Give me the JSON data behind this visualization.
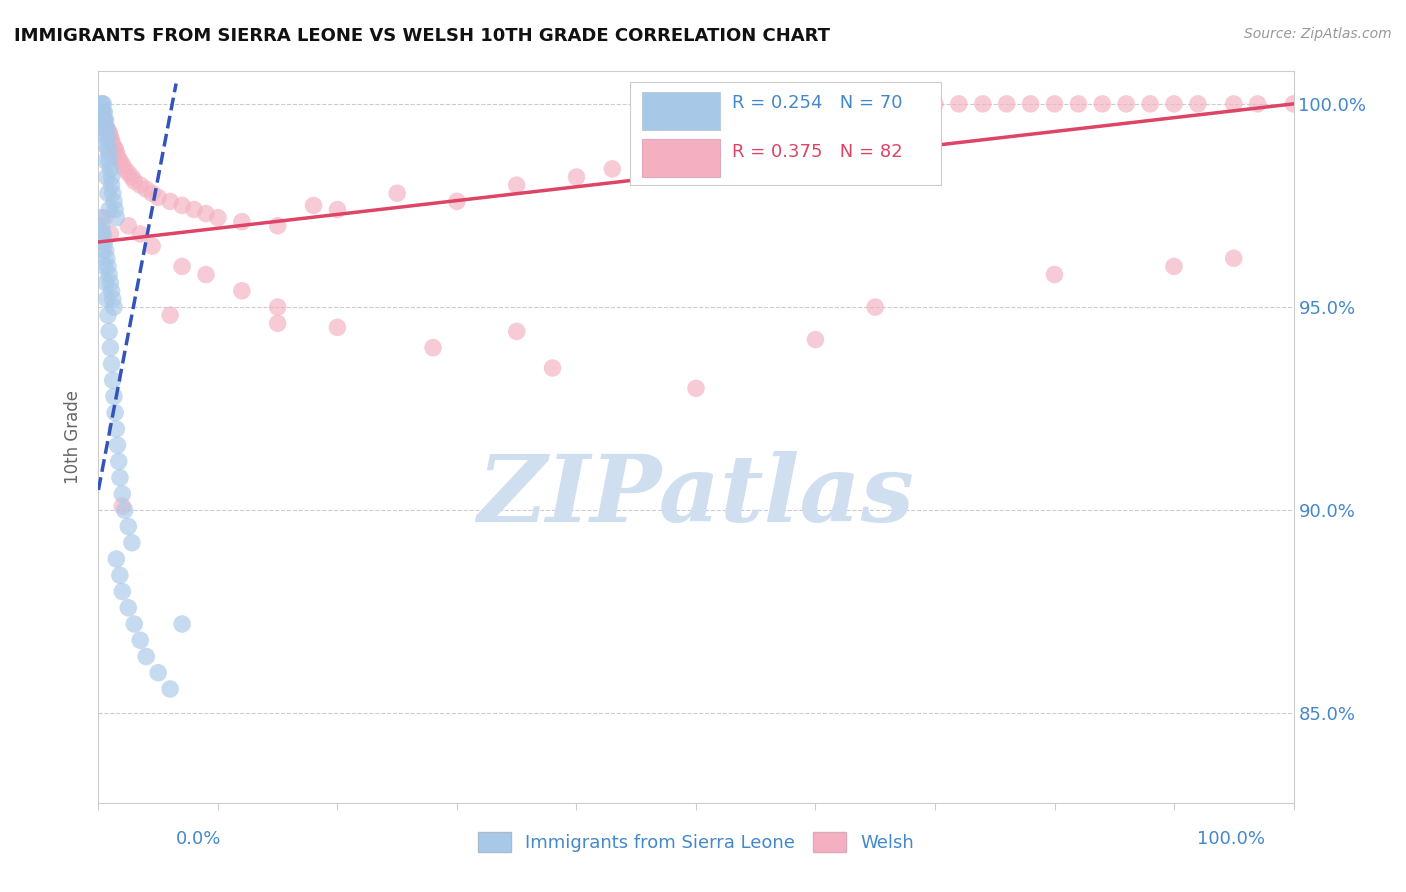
{
  "title": "IMMIGRANTS FROM SIERRA LEONE VS WELSH 10TH GRADE CORRELATION CHART",
  "source_text": "Source: ZipAtlas.com",
  "ylabel": "10th Grade",
  "xlim": [
    0.0,
    1.0
  ],
  "ylim": [
    0.828,
    1.008
  ],
  "y_tick_positions": [
    0.85,
    0.9,
    0.95,
    1.0
  ],
  "y_tick_labels": [
    "85.0%",
    "90.0%",
    "95.0%",
    "100.0%"
  ],
  "x_tick_positions": [
    0.0,
    0.1,
    0.2,
    0.3,
    0.4,
    0.5,
    0.6,
    0.7,
    0.8,
    0.9,
    1.0
  ],
  "blue_R": 0.254,
  "blue_N": 70,
  "pink_R": 0.375,
  "pink_N": 82,
  "blue_color": "#a8c8e8",
  "pink_color": "#f4b0c0",
  "blue_line_color": "#3355bb",
  "pink_line_color": "#dd4466",
  "grid_color": "#cccccc",
  "title_color": "#111111",
  "axis_label_color": "#4488cc",
  "watermark_text": "ZIPatlas",
  "watermark_color": "#d0dff0",
  "source_color": "#999999",
  "background_color": "#ffffff",
  "blue_line_x": [
    0.0,
    0.065
  ],
  "blue_line_y": [
    0.905,
    1.005
  ],
  "pink_line_x": [
    0.0,
    1.0
  ],
  "pink_line_y": [
    0.966,
    1.0
  ],
  "blue_dots_x": [
    0.002,
    0.003,
    0.004,
    0.004,
    0.005,
    0.005,
    0.006,
    0.006,
    0.007,
    0.007,
    0.008,
    0.008,
    0.009,
    0.009,
    0.01,
    0.011,
    0.011,
    0.012,
    0.013,
    0.014,
    0.015,
    0.003,
    0.004,
    0.005,
    0.006,
    0.007,
    0.008,
    0.009,
    0.01,
    0.011,
    0.012,
    0.013,
    0.002,
    0.003,
    0.004,
    0.005,
    0.006,
    0.007,
    0.008,
    0.009,
    0.01,
    0.011,
    0.012,
    0.013,
    0.014,
    0.015,
    0.016,
    0.017,
    0.018,
    0.02,
    0.022,
    0.025,
    0.028,
    0.015,
    0.018,
    0.02,
    0.025,
    0.03,
    0.035,
    0.04,
    0.05,
    0.06,
    0.07,
    0.003,
    0.004,
    0.005,
    0.006,
    0.007,
    0.008,
    0.009
  ],
  "blue_dots_y": [
    1.0,
    1.0,
    1.0,
    0.998,
    0.998,
    0.996,
    0.996,
    0.994,
    0.994,
    0.992,
    0.991,
    0.989,
    0.988,
    0.986,
    0.984,
    0.982,
    0.98,
    0.978,
    0.976,
    0.974,
    0.972,
    0.97,
    0.968,
    0.966,
    0.964,
    0.962,
    0.96,
    0.958,
    0.956,
    0.954,
    0.952,
    0.95,
    0.972,
    0.968,
    0.964,
    0.96,
    0.956,
    0.952,
    0.948,
    0.944,
    0.94,
    0.936,
    0.932,
    0.928,
    0.924,
    0.92,
    0.916,
    0.912,
    0.908,
    0.904,
    0.9,
    0.896,
    0.892,
    0.888,
    0.884,
    0.88,
    0.876,
    0.872,
    0.868,
    0.864,
    0.86,
    0.856,
    0.872,
    0.998,
    0.994,
    0.99,
    0.986,
    0.982,
    0.978,
    0.974
  ],
  "pink_dots_x": [
    0.003,
    0.004,
    0.005,
    0.006,
    0.007,
    0.008,
    0.009,
    0.01,
    0.011,
    0.012,
    0.013,
    0.014,
    0.015,
    0.016,
    0.018,
    0.02,
    0.022,
    0.025,
    0.028,
    0.03,
    0.035,
    0.04,
    0.045,
    0.05,
    0.06,
    0.07,
    0.08,
    0.09,
    0.1,
    0.12,
    0.15,
    0.18,
    0.2,
    0.25,
    0.3,
    0.35,
    0.4,
    0.43,
    0.46,
    0.5,
    0.52,
    0.56,
    0.6,
    0.63,
    0.66,
    0.7,
    0.72,
    0.74,
    0.76,
    0.78,
    0.8,
    0.82,
    0.84,
    0.86,
    0.88,
    0.9,
    0.92,
    0.95,
    0.97,
    1.0,
    0.025,
    0.035,
    0.045,
    0.07,
    0.09,
    0.12,
    0.15,
    0.2,
    0.28,
    0.38,
    0.5,
    0.65,
    0.8,
    0.95,
    0.06,
    0.15,
    0.35,
    0.6,
    0.9,
    0.005,
    0.01,
    0.02
  ],
  "pink_dots_y": [
    0.998,
    0.996,
    0.996,
    0.994,
    0.994,
    0.993,
    0.993,
    0.992,
    0.991,
    0.99,
    0.989,
    0.989,
    0.988,
    0.987,
    0.986,
    0.985,
    0.984,
    0.983,
    0.982,
    0.981,
    0.98,
    0.979,
    0.978,
    0.977,
    0.976,
    0.975,
    0.974,
    0.973,
    0.972,
    0.971,
    0.97,
    0.975,
    0.974,
    0.978,
    0.976,
    0.98,
    0.982,
    0.984,
    0.986,
    0.988,
    0.99,
    0.992,
    0.994,
    0.996,
    0.998,
    1.0,
    1.0,
    1.0,
    1.0,
    1.0,
    1.0,
    1.0,
    1.0,
    1.0,
    1.0,
    1.0,
    1.0,
    1.0,
    1.0,
    1.0,
    0.97,
    0.968,
    0.965,
    0.96,
    0.958,
    0.954,
    0.95,
    0.945,
    0.94,
    0.935,
    0.93,
    0.95,
    0.958,
    0.962,
    0.948,
    0.946,
    0.944,
    0.942,
    0.96,
    0.972,
    0.968,
    0.901
  ]
}
